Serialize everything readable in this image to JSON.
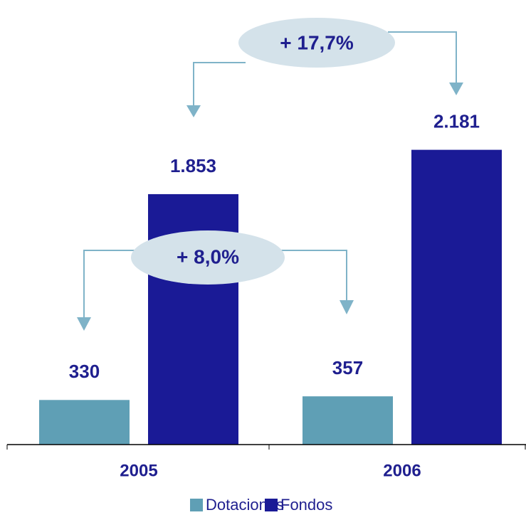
{
  "chart_data": {
    "type": "bar",
    "categories": [
      "2005",
      "2006"
    ],
    "series": [
      {
        "name": "Dotaciones",
        "color": "#5f9fb5",
        "values": [
          330,
          357
        ]
      },
      {
        "name": "Fondos",
        "color": "#1a1a96",
        "values": [
          1853,
          2181
        ],
        "value_labels": [
          "1.853",
          "2.181"
        ]
      }
    ],
    "annotations": [
      "+ 17,7%",
      "+ 8,0%"
    ]
  }
}
